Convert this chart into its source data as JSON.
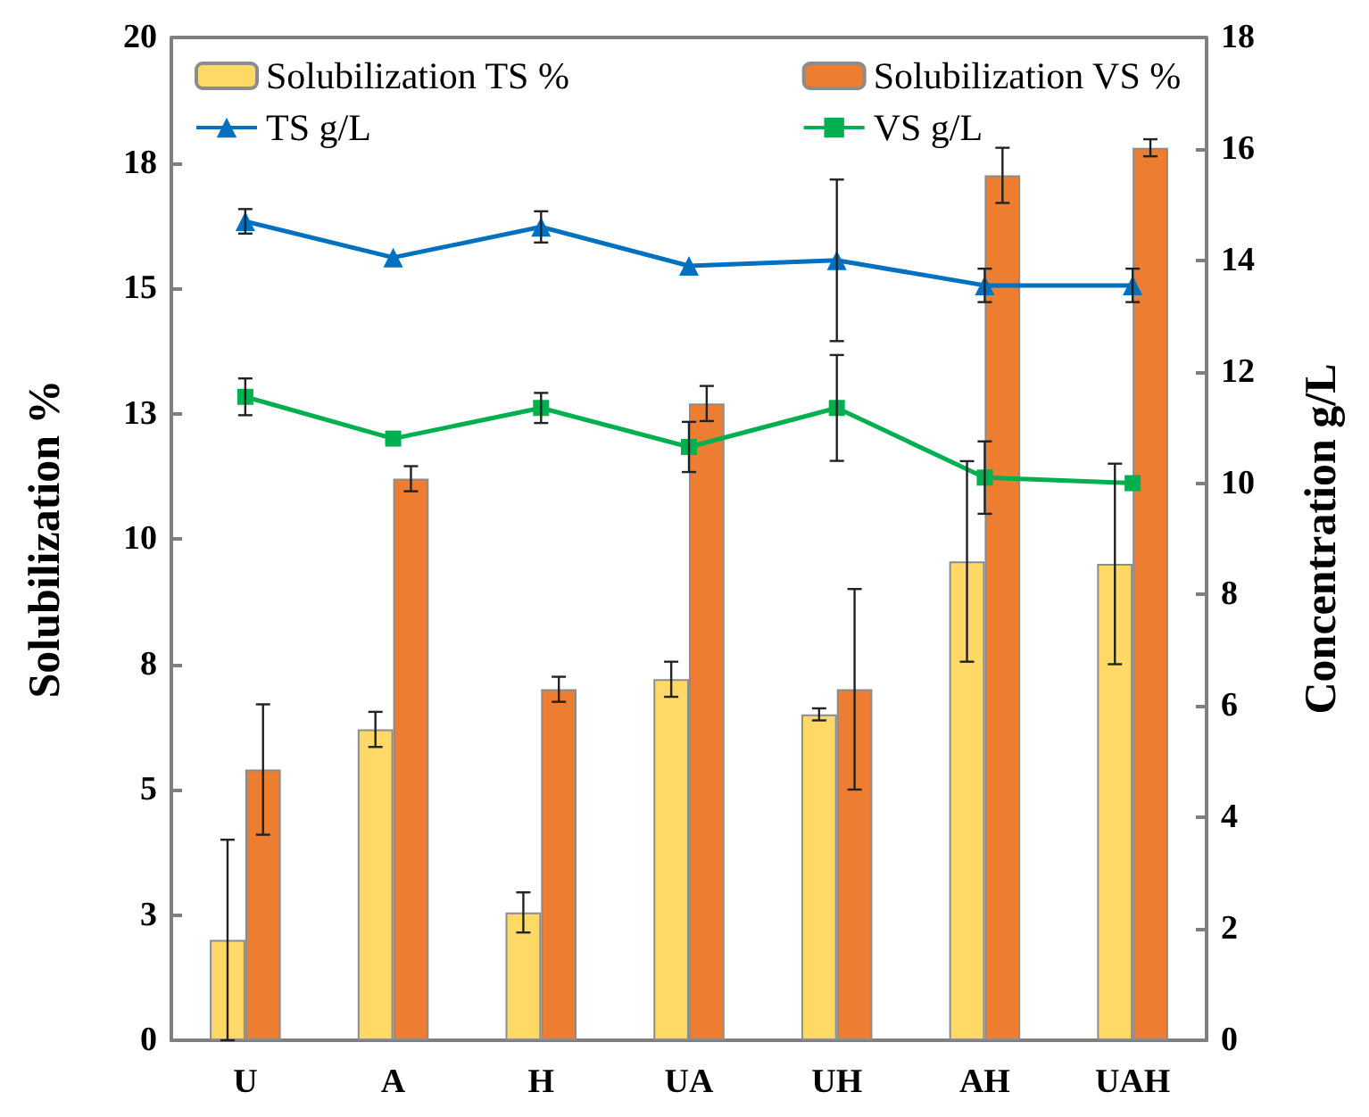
{
  "chart_data": {
    "type": "bar",
    "categories": [
      "U",
      "A",
      "H",
      "UA",
      "UH",
      "AH",
      "UAH"
    ],
    "ylabel": "Solubilization %",
    "y2label": "Concentration g/L",
    "legend": "top",
    "ylim": [
      0,
      20
    ],
    "yticks": [
      0,
      {
        "value": 2.5,
        "label": "3"
      },
      5,
      {
        "value": 7.5,
        "label": "8"
      },
      10,
      {
        "value": 12.5,
        "label": "13"
      },
      15,
      {
        "value": 17.5,
        "label": "18"
      },
      20
    ],
    "y2lim": [
      0,
      18
    ],
    "y2ticks": [
      0,
      2,
      4,
      6,
      8,
      10,
      12,
      14,
      16,
      18
    ],
    "series": [
      {
        "name": "Solubilization TS %",
        "color": "#ffd966",
        "values": [
          2.0,
          6.2,
          2.55,
          7.2,
          6.5,
          9.55,
          9.5
        ],
        "errors": [
          2.0,
          0.35,
          0.4,
          0.35,
          0.12,
          2.0,
          2.0
        ]
      },
      {
        "name": "Solubilization VS %",
        "color": "#ed7d31",
        "values": [
          5.4,
          11.2,
          7.0,
          12.7,
          7.0,
          17.25,
          17.8
        ],
        "errors": [
          1.3,
          0.25,
          0.25,
          0.35,
          2.0,
          0.55,
          0.17
        ]
      },
      {
        "name": "TS g/L",
        "type": "line",
        "axis": "y2",
        "marker": "triangle",
        "color": "#0070c0",
        "values": [
          14.7,
          14.05,
          14.6,
          13.9,
          14.0,
          13.55,
          13.55
        ],
        "errors": [
          0.22,
          null,
          0.28,
          null,
          1.45,
          0.3,
          0.3
        ]
      },
      {
        "name": "VS g/L",
        "type": "line",
        "axis": "y2",
        "marker": "square",
        "color": "#00b050",
        "values": [
          11.55,
          10.8,
          11.35,
          10.65,
          11.35,
          10.1,
          10.0
        ],
        "errors": [
          0.33,
          null,
          0.27,
          0.45,
          0.95,
          0.65,
          null
        ]
      }
    ]
  }
}
